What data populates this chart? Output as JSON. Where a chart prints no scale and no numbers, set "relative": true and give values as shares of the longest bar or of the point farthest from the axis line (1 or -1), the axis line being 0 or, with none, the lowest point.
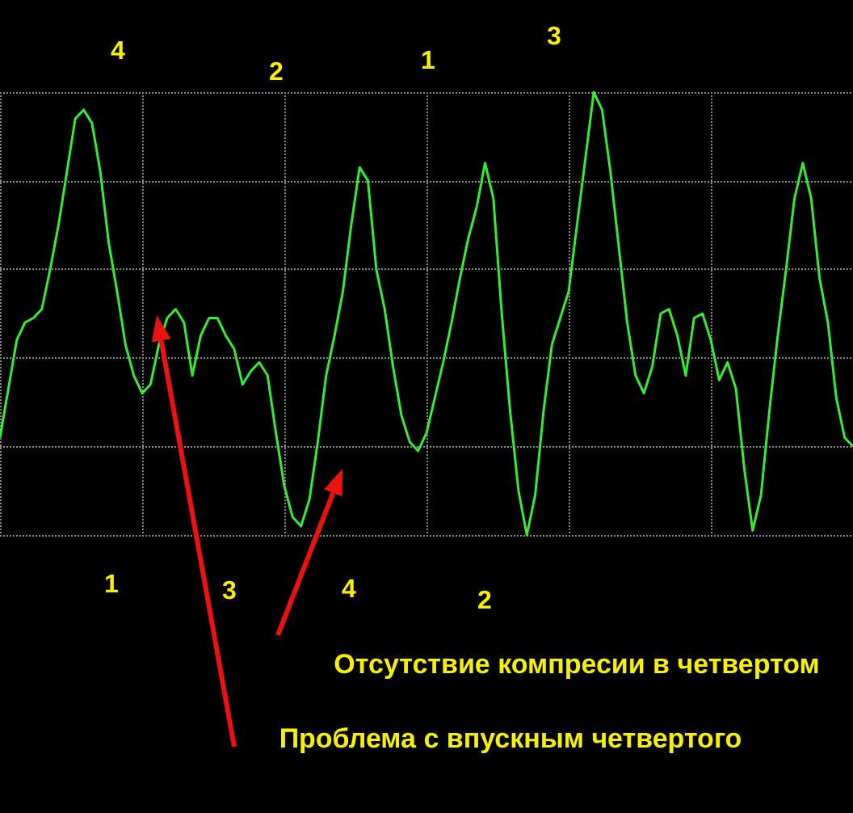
{
  "chart_data": {
    "type": "line",
    "relative": true,
    "grid": true,
    "line_style": "solid",
    "categories": [
      null,
      null,
      null,
      null,
      null,
      null,
      null,
      null,
      null,
      null,
      null,
      null,
      null,
      null,
      null,
      null,
      null,
      null,
      null,
      null,
      null,
      null,
      null,
      null,
      null,
      null,
      null,
      null,
      null,
      null,
      null,
      null,
      null,
      null,
      null,
      null,
      null,
      null,
      null,
      null,
      null,
      null,
      null,
      null,
      null,
      null,
      null,
      null,
      null,
      null,
      null,
      null,
      null,
      null,
      null,
      null,
      null,
      null,
      null,
      null,
      null,
      null,
      null,
      null,
      null,
      null,
      null,
      null,
      null,
      null,
      null,
      null,
      null,
      null,
      null,
      null,
      null,
      null,
      null,
      null,
      null,
      null,
      null,
      null,
      null,
      null,
      null,
      null,
      null,
      null,
      null,
      null,
      null,
      null,
      null,
      null,
      null,
      null,
      null,
      null,
      null,
      null,
      null
    ],
    "series": [
      {
        "color": "#33ee33",
        "values": [
          0.22,
          0.33,
          0.44,
          0.48,
          0.49,
          0.51,
          0.6,
          0.7,
          0.82,
          0.94,
          0.96,
          0.93,
          0.82,
          0.66,
          0.55,
          0.43,
          0.36,
          0.32,
          0.34,
          0.43,
          0.49,
          0.51,
          0.48,
          0.36,
          0.45,
          0.49,
          0.49,
          0.45,
          0.42,
          0.34,
          0.37,
          0.39,
          0.36,
          0.23,
          0.11,
          0.04,
          0.02,
          0.08,
          0.21,
          0.36,
          0.45,
          0.55,
          0.7,
          0.83,
          0.8,
          0.6,
          0.51,
          0.38,
          0.27,
          0.21,
          0.19,
          0.23,
          0.31,
          0.39,
          0.48,
          0.58,
          0.67,
          0.74,
          0.84,
          0.76,
          0.5,
          0.28,
          0.1,
          0.0,
          0.09,
          0.28,
          0.43,
          0.49,
          0.55,
          0.7,
          0.85,
          1.0,
          0.96,
          0.82,
          0.65,
          0.48,
          0.36,
          0.32,
          0.38,
          0.5,
          0.51,
          0.45,
          0.36,
          0.49,
          0.5,
          0.44,
          0.35,
          0.39,
          0.33,
          0.15,
          0.01,
          0.09,
          0.28,
          0.45,
          0.6,
          0.76,
          0.84,
          0.76,
          0.58,
          0.48,
          0.31,
          0.22,
          0.2
        ]
      }
    ],
    "annotations": [
      "4",
      "2",
      "1",
      "3",
      "1",
      "3",
      "4",
      "2",
      "Отсутствие компресии в четвертом",
      "Проблема с впускным четвертого"
    ]
  }
}
